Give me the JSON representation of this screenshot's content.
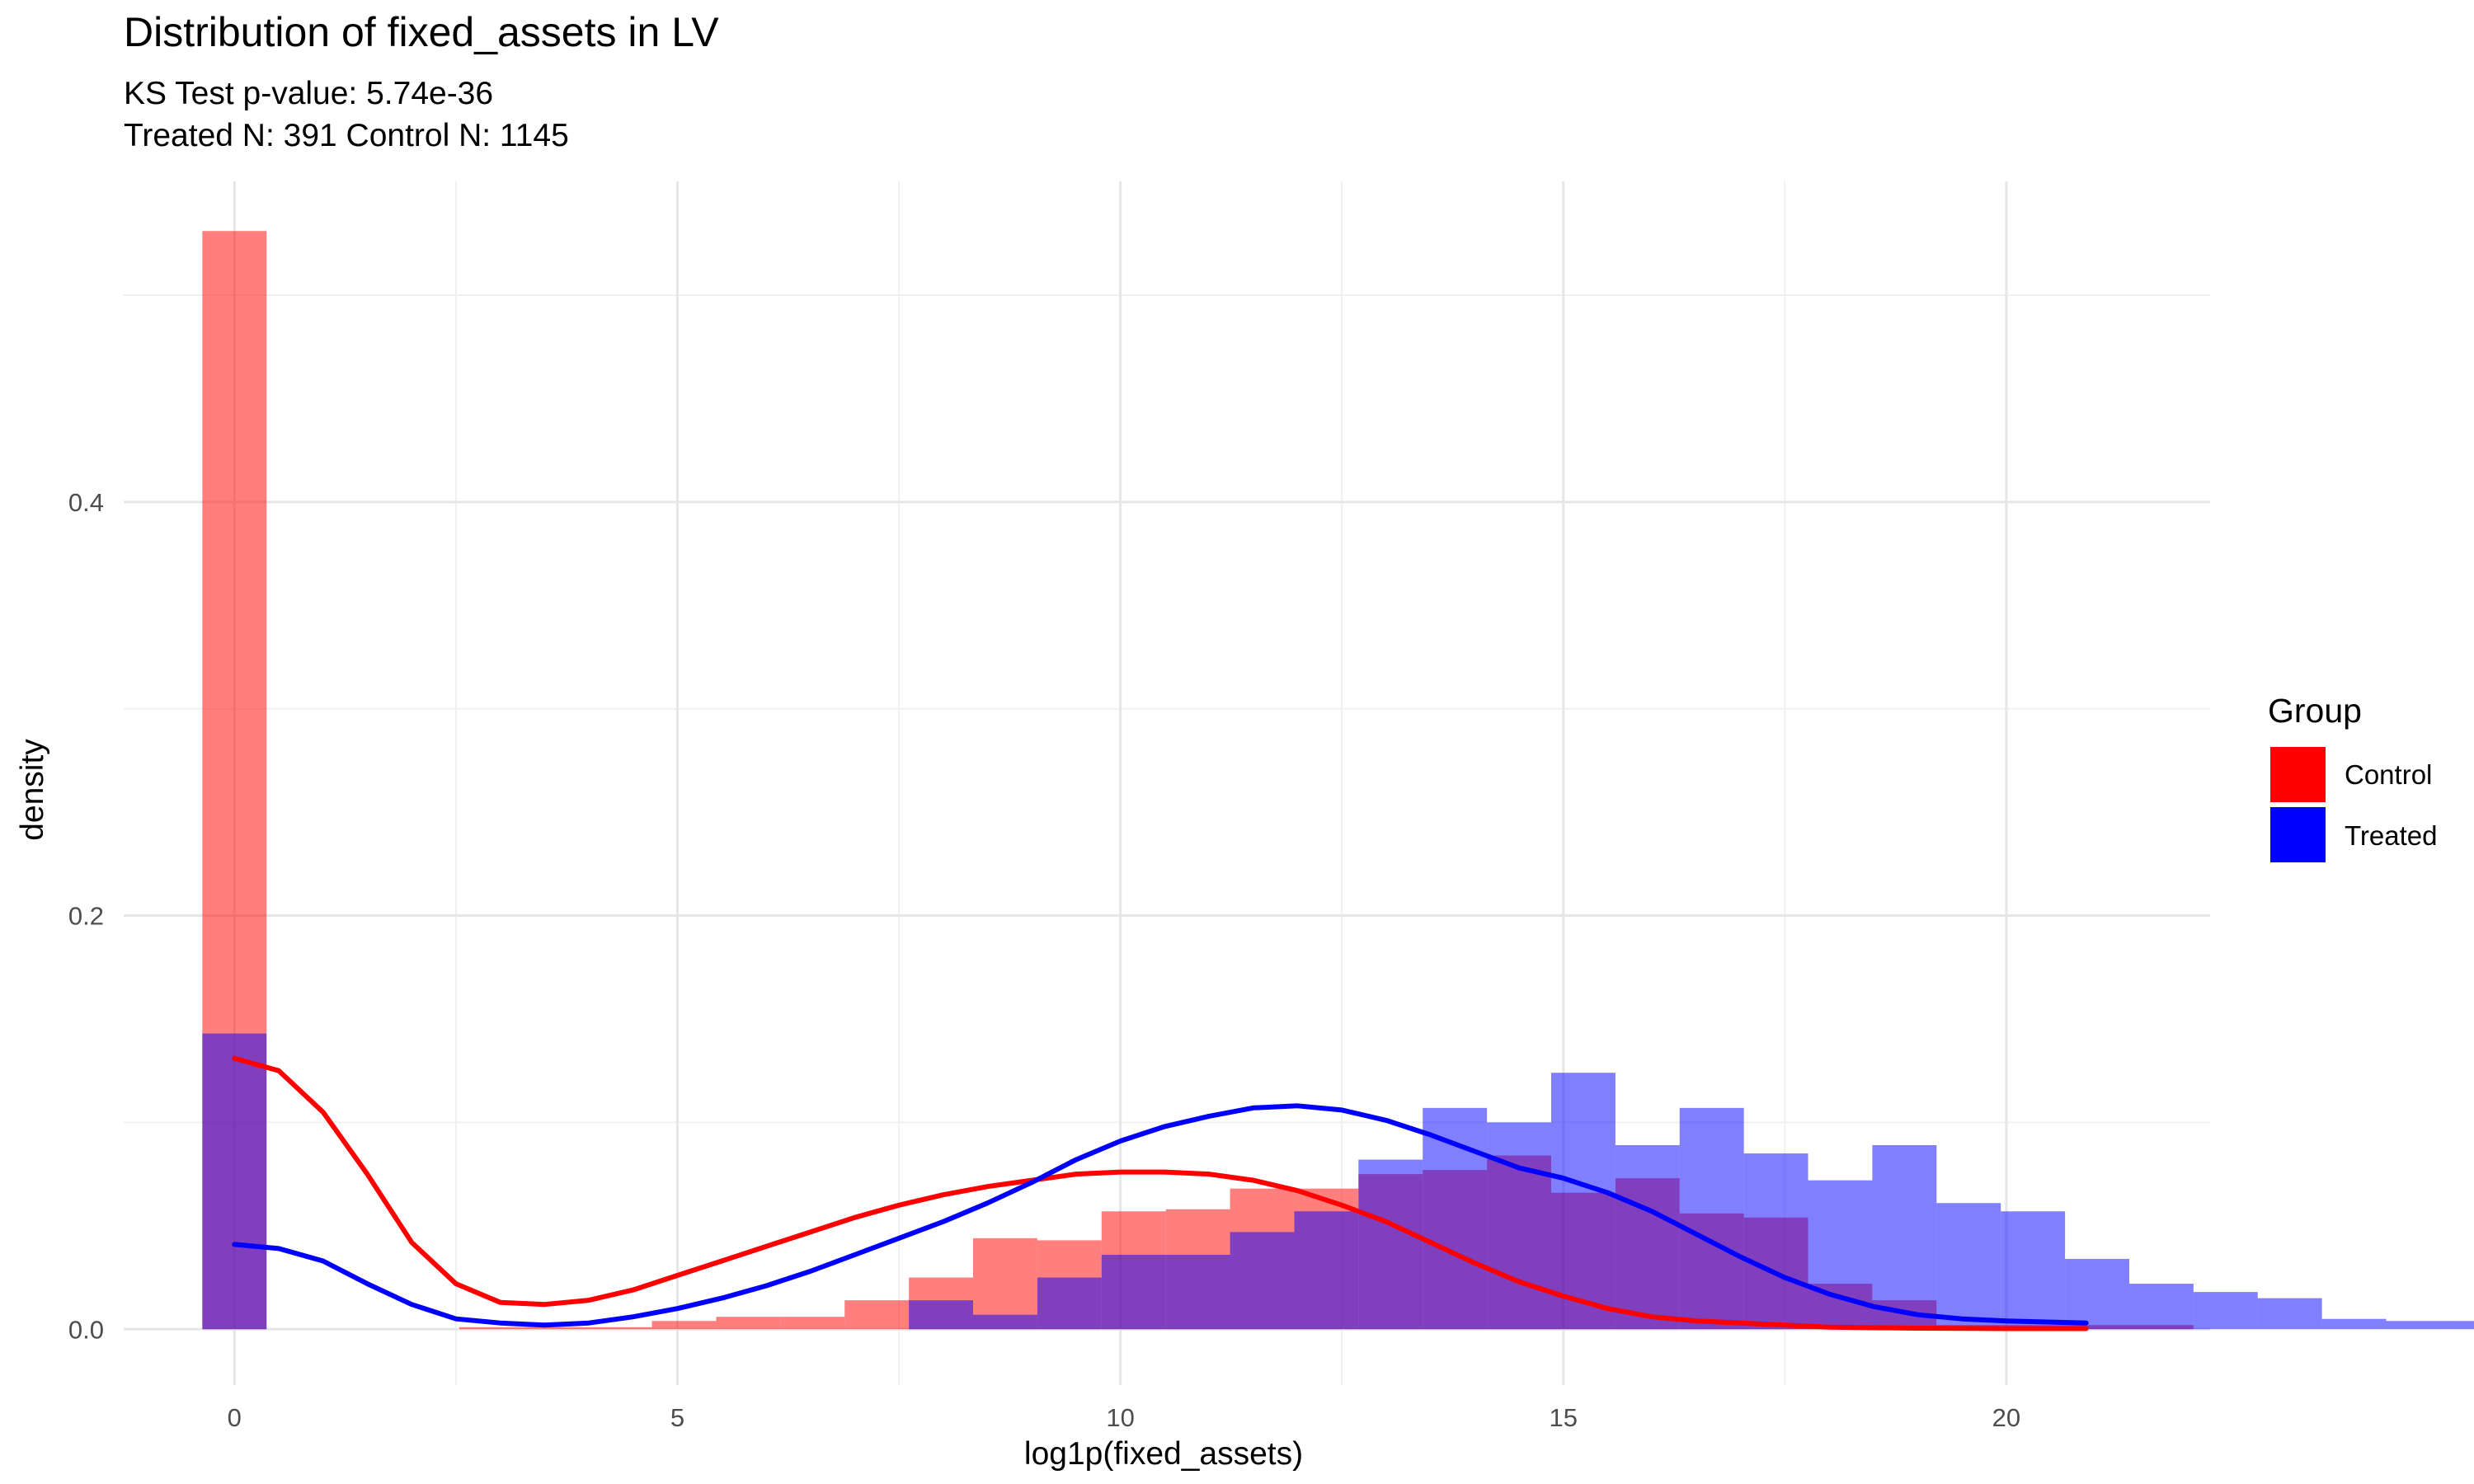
{
  "chart_data": {
    "type": "histogram+density",
    "title": "Distribution of fixed_assets in LV",
    "subtitle_line1": "KS Test p-value: 5.74e-36",
    "subtitle_line2": "Treated N: 391 Control N: 1145",
    "xlabel": "log1p(fixed_assets)",
    "ylabel": "density",
    "xlim": [
      -1.25,
      22.3
    ],
    "ylim": [
      -0.027,
      0.555
    ],
    "x_ticks": [
      0,
      5,
      10,
      15,
      20
    ],
    "x_tick_labels": [
      "0",
      "5",
      "10",
      "15",
      "20"
    ],
    "y_ticks": [
      0.0,
      0.2,
      0.4
    ],
    "y_tick_labels": [
      "0.0",
      "0.2",
      "0.4"
    ],
    "grid": true,
    "legend": {
      "title": "Group",
      "position": "right",
      "entries": [
        {
          "label": "Control",
          "color": "#ff0000"
        },
        {
          "label": "Treated",
          "color": "#0000ff"
        }
      ]
    },
    "histogram": {
      "bin_width": 0.725,
      "first_bin_center": 0,
      "opacity": 0.5,
      "series": [
        {
          "name": "Control",
          "color": "#ff0000",
          "values": [
            0.531,
            0,
            0,
            0,
            0.001,
            0.001,
            0.001,
            0.004,
            0.006,
            0.006,
            0.014,
            0.025,
            0.044,
            0.043,
            0.057,
            0.058,
            0.068,
            0.068,
            0.075,
            0.077,
            0.084,
            0.066,
            0.073,
            0.056,
            0.054,
            0.022,
            0.014,
            0.002,
            0.002,
            0.002,
            0.002,
            0,
            0,
            0,
            0,
            0,
            0,
            0,
            0,
            0,
            0
          ]
        },
        {
          "name": "Treated",
          "color": "#0000ff",
          "values": [
            0.143,
            0,
            0,
            0,
            0,
            0,
            0,
            0,
            0,
            0,
            0,
            0.014,
            0.007,
            0.025,
            0.036,
            0.036,
            0.047,
            0.057,
            0.082,
            0.107,
            0.1,
            0.124,
            0.089,
            0.107,
            0.085,
            0.072,
            0.089,
            0.061,
            0.057,
            0.034,
            0.022,
            0.018,
            0.015,
            0.005,
            0.004,
            0.004,
            0.004,
            0.004,
            0.004,
            0.004,
            0.004
          ]
        }
      ]
    },
    "density": {
      "series": [
        {
          "name": "Control",
          "color": "#ff0000",
          "points": [
            [
              0,
              0.131
            ],
            [
              0.5,
              0.125
            ],
            [
              1,
              0.105
            ],
            [
              1.5,
              0.075
            ],
            [
              2,
              0.042
            ],
            [
              2.5,
              0.022
            ],
            [
              3,
              0.013
            ],
            [
              3.5,
              0.012
            ],
            [
              4,
              0.014
            ],
            [
              4.5,
              0.019
            ],
            [
              5,
              0.026
            ],
            [
              5.5,
              0.033
            ],
            [
              6,
              0.04
            ],
            [
              6.5,
              0.047
            ],
            [
              7,
              0.054
            ],
            [
              7.5,
              0.06
            ],
            [
              8,
              0.065
            ],
            [
              8.5,
              0.069
            ],
            [
              9,
              0.072
            ],
            [
              9.5,
              0.075
            ],
            [
              10,
              0.076
            ],
            [
              10.5,
              0.076
            ],
            [
              11,
              0.075
            ],
            [
              11.5,
              0.072
            ],
            [
              12,
              0.067
            ],
            [
              12.5,
              0.06
            ],
            [
              13,
              0.052
            ],
            [
              13.5,
              0.042
            ],
            [
              14,
              0.032
            ],
            [
              14.5,
              0.023
            ],
            [
              15,
              0.016
            ],
            [
              15.5,
              0.01
            ],
            [
              16,
              0.006
            ],
            [
              16.5,
              0.004
            ],
            [
              17,
              0.003
            ],
            [
              17.5,
              0.002
            ],
            [
              18,
              0.001
            ],
            [
              19,
              0.0005
            ],
            [
              20,
              0.0003
            ],
            [
              20.9,
              0.0003
            ]
          ]
        },
        {
          "name": "Treated",
          "color": "#0000ff",
          "points": [
            [
              0,
              0.041
            ],
            [
              0.5,
              0.039
            ],
            [
              1,
              0.033
            ],
            [
              1.5,
              0.022
            ],
            [
              2,
              0.012
            ],
            [
              2.5,
              0.005
            ],
            [
              3,
              0.003
            ],
            [
              3.5,
              0.002
            ],
            [
              4,
              0.003
            ],
            [
              4.5,
              0.006
            ],
            [
              5,
              0.01
            ],
            [
              5.5,
              0.015
            ],
            [
              6,
              0.021
            ],
            [
              6.5,
              0.028
            ],
            [
              7,
              0.036
            ],
            [
              7.5,
              0.044
            ],
            [
              8,
              0.052
            ],
            [
              8.5,
              0.061
            ],
            [
              9,
              0.071
            ],
            [
              9.5,
              0.082
            ],
            [
              10,
              0.091
            ],
            [
              10.5,
              0.098
            ],
            [
              11,
              0.103
            ],
            [
              11.5,
              0.107
            ],
            [
              12,
              0.108
            ],
            [
              12.5,
              0.106
            ],
            [
              13,
              0.101
            ],
            [
              13.5,
              0.094
            ],
            [
              14,
              0.086
            ],
            [
              14.5,
              0.078
            ],
            [
              15,
              0.073
            ],
            [
              15.5,
              0.066
            ],
            [
              16,
              0.057
            ],
            [
              16.5,
              0.046
            ],
            [
              17,
              0.035
            ],
            [
              17.5,
              0.025
            ],
            [
              18,
              0.017
            ],
            [
              18.5,
              0.011
            ],
            [
              19,
              0.007
            ],
            [
              19.5,
              0.005
            ],
            [
              20,
              0.004
            ],
            [
              20.9,
              0.003
            ]
          ]
        }
      ]
    }
  }
}
